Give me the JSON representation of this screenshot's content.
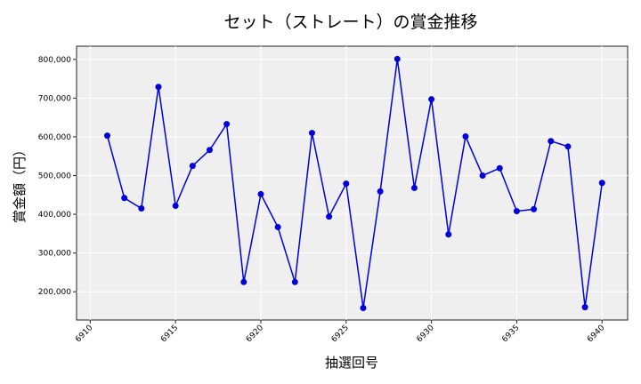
{
  "chart_data": {
    "type": "line",
    "title": "セット（ストレート）の賞金推移",
    "xlabel": "抽選回号",
    "ylabel": "賞金額（円）",
    "x": [
      6911,
      6912,
      6913,
      6914,
      6915,
      6916,
      6917,
      6918,
      6919,
      6920,
      6921,
      6922,
      6923,
      6924,
      6925,
      6926,
      6927,
      6928,
      6929,
      6930,
      6931,
      6932,
      6933,
      6934,
      6935,
      6936,
      6937,
      6938,
      6939,
      6940
    ],
    "series": [
      {
        "name": "賞金額",
        "color": "#0000dd",
        "values": [
          603000,
          442000,
          415000,
          729000,
          422000,
          525000,
          566000,
          633000,
          225000,
          452000,
          367000,
          225000,
          610000,
          394000,
          479000,
          158000,
          459000,
          801000,
          468000,
          697000,
          348000,
          601000,
          500000,
          519000,
          408000,
          413000,
          589000,
          575000,
          160000,
          481000
        ]
      }
    ],
    "xticks": [
      6910,
      6915,
      6920,
      6925,
      6930,
      6935,
      6940
    ],
    "yticks": [
      200000,
      300000,
      400000,
      500000,
      600000,
      700000,
      800000
    ],
    "ytick_labels": [
      "200,000",
      "300,000",
      "400,000",
      "500,000",
      "600,000",
      "700,000",
      "800,000"
    ],
    "xlim": [
      6909.2,
      6941.5
    ],
    "ylim": [
      127000,
      834000
    ],
    "grid": true,
    "legend": null,
    "background": "#efefef"
  }
}
